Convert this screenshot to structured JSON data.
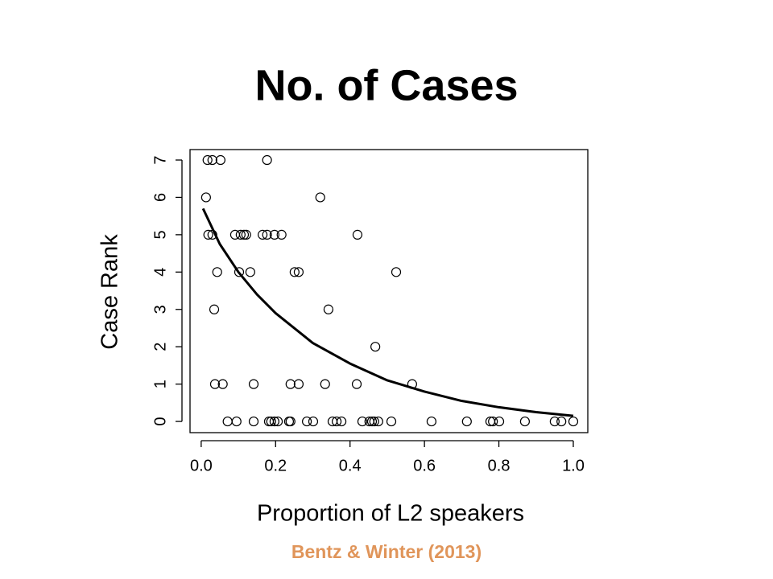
{
  "chart_data": {
    "type": "scatter",
    "title": "No. of Cases",
    "x_label": "Proportion of L2 speakers",
    "y_label": "Case Rank",
    "source": "Bentz & Winter (2013)",
    "xlim": [
      -0.03,
      1.039
    ],
    "ylim": [
      -0.3,
      7.28
    ],
    "xticks": [
      {
        "value": 0,
        "label": "0.0"
      },
      0.2,
      0.4,
      0.6,
      0.8,
      {
        "value": 1,
        "label": "1.0"
      }
    ],
    "yticks": [
      0,
      1,
      2,
      3,
      4,
      5,
      6,
      7
    ],
    "series": [
      {
        "type": "scatter",
        "color": "#000000",
        "x": [
          0.017,
          0.03,
          0.052,
          0.177,
          0.013,
          0.32,
          0.019,
          0.03,
          0.091,
          0.106,
          0.115,
          0.121,
          0.165,
          0.177,
          0.197,
          0.216,
          0.42,
          0.043,
          0.102,
          0.132,
          0.251,
          0.262,
          0.524,
          0.035,
          0.342,
          0.468,
          0.037,
          0.058,
          0.141,
          0.24,
          0.262,
          0.333,
          0.418,
          0.567,
          0.071,
          0.095,
          0.141,
          0.182,
          0.188,
          0.197,
          0.206,
          0.236,
          0.24,
          0.284,
          0.301,
          0.353,
          0.364,
          0.377,
          0.433,
          0.452,
          0.459,
          0.465,
          0.476,
          0.511,
          0.619,
          0.714,
          0.777,
          0.784,
          0.801,
          0.87,
          0.95,
          0.968,
          1.0
        ],
        "values": [
          7,
          7,
          7,
          7,
          6,
          6,
          5,
          5,
          5,
          5,
          5,
          5,
          5,
          5,
          5,
          5,
          5,
          4,
          4,
          4,
          4,
          4,
          4,
          3,
          3,
          2,
          1,
          1,
          1,
          1,
          1,
          1,
          1,
          1,
          0,
          0,
          0,
          0,
          0,
          0,
          0,
          0,
          0,
          0,
          0,
          0,
          0,
          0,
          0,
          0,
          0,
          0,
          0,
          0,
          0,
          0,
          0,
          0,
          0,
          0,
          0,
          0,
          0
        ]
      },
      {
        "type": "line",
        "color": "#000000",
        "x": [
          0.005,
          0.05,
          0.1,
          0.15,
          0.2,
          0.3,
          0.4,
          0.5,
          0.6,
          0.7,
          0.8,
          0.9,
          1.0
        ],
        "values": [
          5.7,
          4.75,
          4.0,
          3.4,
          2.9,
          2.1,
          1.55,
          1.1,
          0.8,
          0.55,
          0.38,
          0.25,
          0.15
        ]
      }
    ]
  }
}
